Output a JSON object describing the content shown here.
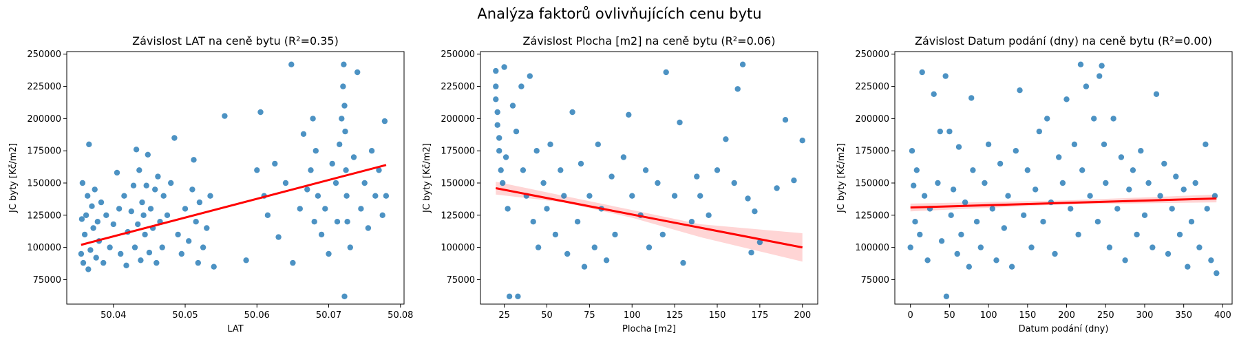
{
  "figure": {
    "title": "Analýza faktorů ovlivňujících cenu bytu"
  },
  "colors": {
    "points": "#1f77b4",
    "regression_line": "#ff0000",
    "confidence_band": "#ffb3b3",
    "axes": "#000000"
  },
  "chart_data": [
    {
      "type": "scatter",
      "title": "Závislost LAT na ceně bytu (R²=0.35)",
      "xlabel": "LAT",
      "ylabel": "JC byty [Kč/m2]",
      "xlim": [
        50.0335,
        50.0805
      ],
      "ylim": [
        56000,
        252000
      ],
      "xticks": [
        50.04,
        50.05,
        50.06,
        50.07,
        50.08
      ],
      "xtick_labels": [
        "50.04",
        "50.05",
        "50.06",
        "50.07",
        "50.08"
      ],
      "yticks": [
        75000,
        100000,
        125000,
        150000,
        175000,
        200000,
        225000,
        250000
      ],
      "ytick_labels": [
        "75000",
        "100000",
        "125000",
        "150000",
        "175000",
        "200000",
        "225000",
        "250000"
      ],
      "grid": false,
      "regression": {
        "x": [
          50.0355,
          50.078
        ],
        "y": [
          102000,
          164000
        ]
      },
      "confidence_band": null,
      "points": [
        [
          50.0355,
          95000
        ],
        [
          50.0356,
          122000
        ],
        [
          50.0357,
          150000
        ],
        [
          50.0358,
          88000
        ],
        [
          50.036,
          110000
        ],
        [
          50.0362,
          125000
        ],
        [
          50.0364,
          140000
        ],
        [
          50.0365,
          83000
        ],
        [
          50.0366,
          180000
        ],
        [
          50.0368,
          98000
        ],
        [
          50.037,
          132000
        ],
        [
          50.0372,
          115000
        ],
        [
          50.0374,
          145000
        ],
        [
          50.0376,
          92000
        ],
        [
          50.0378,
          120000
        ],
        [
          50.038,
          105000
        ],
        [
          50.0383,
          135000
        ],
        [
          50.0386,
          88000
        ],
        [
          50.039,
          125000
        ],
        [
          50.0395,
          100000
        ],
        [
          50.04,
          118000
        ],
        [
          50.0405,
          158000
        ],
        [
          50.0408,
          130000
        ],
        [
          50.041,
          95000
        ],
        [
          50.0415,
          140000
        ],
        [
          50.0418,
          86000
        ],
        [
          50.042,
          112000
        ],
        [
          50.0425,
          128000
        ],
        [
          50.0428,
          148000
        ],
        [
          50.043,
          100000
        ],
        [
          50.0432,
          176000
        ],
        [
          50.0434,
          118000
        ],
        [
          50.0436,
          160000
        ],
        [
          50.0438,
          90000
        ],
        [
          50.044,
          135000
        ],
        [
          50.0442,
          125000
        ],
        [
          50.0444,
          110000
        ],
        [
          50.0446,
          148000
        ],
        [
          50.0448,
          172000
        ],
        [
          50.045,
          96000
        ],
        [
          50.0452,
          130000
        ],
        [
          50.0455,
          115000
        ],
        [
          50.0458,
          145000
        ],
        [
          50.046,
          88000
        ],
        [
          50.0462,
          155000
        ],
        [
          50.0465,
          120000
        ],
        [
          50.0468,
          100000
        ],
        [
          50.047,
          140000
        ],
        [
          50.0475,
          125000
        ],
        [
          50.048,
          150000
        ],
        [
          50.0485,
          185000
        ],
        [
          50.049,
          110000
        ],
        [
          50.0495,
          95000
        ],
        [
          50.05,
          130000
        ],
        [
          50.0505,
          105000
        ],
        [
          50.051,
          145000
        ],
        [
          50.0512,
          168000
        ],
        [
          50.0515,
          120000
        ],
        [
          50.0518,
          88000
        ],
        [
          50.052,
          135000
        ],
        [
          50.0525,
          100000
        ],
        [
          50.053,
          115000
        ],
        [
          50.0535,
          140000
        ],
        [
          50.054,
          85000
        ],
        [
          50.0555,
          202000
        ],
        [
          50.0585,
          90000
        ],
        [
          50.06,
          160000
        ],
        [
          50.0605,
          205000
        ],
        [
          50.061,
          140000
        ],
        [
          50.0615,
          125000
        ],
        [
          50.0625,
          165000
        ],
        [
          50.063,
          108000
        ],
        [
          50.064,
          150000
        ],
        [
          50.0648,
          242000
        ],
        [
          50.065,
          88000
        ],
        [
          50.066,
          130000
        ],
        [
          50.0665,
          188000
        ],
        [
          50.067,
          145000
        ],
        [
          50.0675,
          160000
        ],
        [
          50.0678,
          200000
        ],
        [
          50.068,
          120000
        ],
        [
          50.0682,
          175000
        ],
        [
          50.0685,
          140000
        ],
        [
          50.069,
          110000
        ],
        [
          50.0695,
          130000
        ],
        [
          50.07,
          95000
        ],
        [
          50.0705,
          165000
        ],
        [
          50.071,
          150000
        ],
        [
          50.0712,
          120000
        ],
        [
          50.0715,
          180000
        ],
        [
          50.0718,
          200000
        ],
        [
          50.072,
          225000
        ],
        [
          50.0721,
          242000
        ],
        [
          50.0722,
          210000
        ],
        [
          50.0723,
          190000
        ],
        [
          50.0724,
          160000
        ],
        [
          50.0725,
          140000
        ],
        [
          50.0726,
          120000
        ],
        [
          50.0722,
          62000
        ],
        [
          50.073,
          100000
        ],
        [
          50.0735,
          170000
        ],
        [
          50.074,
          236000
        ],
        [
          50.0745,
          130000
        ],
        [
          50.075,
          150000
        ],
        [
          50.0755,
          115000
        ],
        [
          50.076,
          175000
        ],
        [
          50.0765,
          140000
        ],
        [
          50.077,
          160000
        ],
        [
          50.0775,
          125000
        ],
        [
          50.0778,
          198000
        ],
        [
          50.078,
          140000
        ]
      ]
    },
    {
      "type": "scatter",
      "title": "Závislost Plocha [m2] na ceně bytu (R²=0.06)",
      "xlabel": "Plocha [m2]",
      "ylabel": "JC byty [Kč/m2]",
      "xlim": [
        11,
        209
      ],
      "ylim": [
        56000,
        252000
      ],
      "xticks": [
        25,
        50,
        75,
        100,
        125,
        150,
        175,
        200
      ],
      "xtick_labels": [
        "25",
        "50",
        "75",
        "100",
        "125",
        "150",
        "175",
        "200"
      ],
      "yticks": [
        75000,
        100000,
        125000,
        150000,
        175000,
        200000,
        225000,
        250000
      ],
      "ytick_labels": [
        "75000",
        "100000",
        "125000",
        "150000",
        "175000",
        "200000",
        "225000",
        "250000"
      ],
      "grid": false,
      "regression": {
        "x": [
          20,
          200
        ],
        "y": [
          146000,
          100000
        ]
      },
      "confidence_band": {
        "x": [
          20,
          60,
          100,
          140,
          200
        ],
        "lower": [
          141000,
          135000,
          123000,
          108000,
          89000
        ],
        "upper": [
          151000,
          140000,
          129000,
          118000,
          111000
        ]
      },
      "points": [
        [
          20,
          237000
        ],
        [
          20,
          225000
        ],
        [
          20,
          215000
        ],
        [
          21,
          205000
        ],
        [
          21,
          195000
        ],
        [
          22,
          185000
        ],
        [
          22,
          175000
        ],
        [
          23,
          160000
        ],
        [
          24,
          150000
        ],
        [
          25,
          240000
        ],
        [
          26,
          170000
        ],
        [
          27,
          130000
        ],
        [
          28,
          62000
        ],
        [
          30,
          210000
        ],
        [
          32,
          190000
        ],
        [
          33,
          62000
        ],
        [
          35,
          225000
        ],
        [
          36,
          160000
        ],
        [
          38,
          140000
        ],
        [
          40,
          233000
        ],
        [
          42,
          120000
        ],
        [
          44,
          175000
        ],
        [
          45,
          100000
        ],
        [
          48,
          150000
        ],
        [
          50,
          130000
        ],
        [
          52,
          180000
        ],
        [
          55,
          110000
        ],
        [
          58,
          160000
        ],
        [
          60,
          140000
        ],
        [
          62,
          95000
        ],
        [
          65,
          205000
        ],
        [
          68,
          120000
        ],
        [
          70,
          165000
        ],
        [
          72,
          85000
        ],
        [
          75,
          140000
        ],
        [
          78,
          100000
        ],
        [
          80,
          180000
        ],
        [
          82,
          130000
        ],
        [
          85,
          90000
        ],
        [
          88,
          155000
        ],
        [
          90,
          110000
        ],
        [
          95,
          170000
        ],
        [
          98,
          203000
        ],
        [
          100,
          140000
        ],
        [
          105,
          125000
        ],
        [
          108,
          160000
        ],
        [
          110,
          100000
        ],
        [
          115,
          150000
        ],
        [
          118,
          110000
        ],
        [
          120,
          236000
        ],
        [
          125,
          140000
        ],
        [
          128,
          197000
        ],
        [
          130,
          88000
        ],
        [
          135,
          120000
        ],
        [
          138,
          155000
        ],
        [
          140,
          140000
        ],
        [
          145,
          125000
        ],
        [
          150,
          160000
        ],
        [
          155,
          184000
        ],
        [
          160,
          150000
        ],
        [
          162,
          223000
        ],
        [
          165,
          242000
        ],
        [
          168,
          138000
        ],
        [
          170,
          96000
        ],
        [
          172,
          128000
        ],
        [
          175,
          104000
        ],
        [
          185,
          146000
        ],
        [
          190,
          199000
        ],
        [
          195,
          152000
        ],
        [
          200,
          183000
        ]
      ]
    },
    {
      "type": "scatter",
      "title": "Závislost Datum podání (dny) na ceně bytu (R²=0.00)",
      "xlabel": "Datum podání (dny)",
      "ylabel": "JC byty [Kč/m2]",
      "xlim": [
        -20,
        412
      ],
      "ylim": [
        56000,
        252000
      ],
      "xticks": [
        0,
        50,
        100,
        150,
        200,
        250,
        300,
        350,
        400
      ],
      "xtick_labels": [
        "0",
        "50",
        "100",
        "150",
        "200",
        "250",
        "300",
        "350",
        "400"
      ],
      "yticks": [
        75000,
        100000,
        125000,
        150000,
        175000,
        200000,
        225000,
        250000
      ],
      "ytick_labels": [
        "75000",
        "100000",
        "125000",
        "150000",
        "175000",
        "200000",
        "225000",
        "250000"
      ],
      "grid": false,
      "regression": {
        "x": [
          0,
          392
        ],
        "y": [
          131000,
          138000
        ]
      },
      "confidence_band": {
        "x": [
          0,
          200,
          392
        ],
        "lower": [
          128000,
          133500,
          135000
        ],
        "upper": [
          134000,
          136500,
          141000
        ]
      },
      "points": [
        [
          0,
          100000
        ],
        [
          2,
          175000
        ],
        [
          4,
          148000
        ],
        [
          6,
          120000
        ],
        [
          8,
          160000
        ],
        [
          12,
          110000
        ],
        [
          15,
          236000
        ],
        [
          18,
          140000
        ],
        [
          22,
          90000
        ],
        [
          25,
          130000
        ],
        [
          30,
          219000
        ],
        [
          35,
          150000
        ],
        [
          38,
          190000
        ],
        [
          40,
          105000
        ],
        [
          45,
          233000
        ],
        [
          46,
          62000
        ],
        [
          50,
          190000
        ],
        [
          52,
          125000
        ],
        [
          55,
          145000
        ],
        [
          60,
          95000
        ],
        [
          62,
          178000
        ],
        [
          65,
          110000
        ],
        [
          70,
          135000
        ],
        [
          75,
          85000
        ],
        [
          78,
          216000
        ],
        [
          80,
          160000
        ],
        [
          85,
          120000
        ],
        [
          90,
          100000
        ],
        [
          95,
          150000
        ],
        [
          100,
          180000
        ],
        [
          105,
          130000
        ],
        [
          110,
          90000
        ],
        [
          115,
          165000
        ],
        [
          120,
          115000
        ],
        [
          125,
          140000
        ],
        [
          130,
          85000
        ],
        [
          135,
          175000
        ],
        [
          140,
          222000
        ],
        [
          145,
          125000
        ],
        [
          150,
          160000
        ],
        [
          155,
          100000
        ],
        [
          160,
          145000
        ],
        [
          165,
          190000
        ],
        [
          170,
          120000
        ],
        [
          175,
          200000
        ],
        [
          180,
          135000
        ],
        [
          185,
          95000
        ],
        [
          190,
          170000
        ],
        [
          195,
          150000
        ],
        [
          200,
          215000
        ],
        [
          205,
          130000
        ],
        [
          210,
          180000
        ],
        [
          215,
          110000
        ],
        [
          218,
          242000
        ],
        [
          220,
          160000
        ],
        [
          225,
          225000
        ],
        [
          230,
          140000
        ],
        [
          235,
          200000
        ],
        [
          240,
          120000
        ],
        [
          242,
          233000
        ],
        [
          245,
          241000
        ],
        [
          248,
          180000
        ],
        [
          250,
          150000
        ],
        [
          255,
          100000
        ],
        [
          260,
          200000
        ],
        [
          265,
          130000
        ],
        [
          270,
          170000
        ],
        [
          275,
          90000
        ],
        [
          280,
          145000
        ],
        [
          285,
          160000
        ],
        [
          290,
          110000
        ],
        [
          295,
          175000
        ],
        [
          300,
          125000
        ],
        [
          305,
          150000
        ],
        [
          310,
          100000
        ],
        [
          315,
          219000
        ],
        [
          320,
          140000
        ],
        [
          325,
          165000
        ],
        [
          330,
          95000
        ],
        [
          335,
          130000
        ],
        [
          340,
          155000
        ],
        [
          345,
          110000
        ],
        [
          350,
          145000
        ],
        [
          355,
          85000
        ],
        [
          360,
          120000
        ],
        [
          365,
          150000
        ],
        [
          370,
          100000
        ],
        [
          378,
          180000
        ],
        [
          380,
          130000
        ],
        [
          385,
          90000
        ],
        [
          390,
          140000
        ],
        [
          392,
          80000
        ]
      ]
    }
  ]
}
